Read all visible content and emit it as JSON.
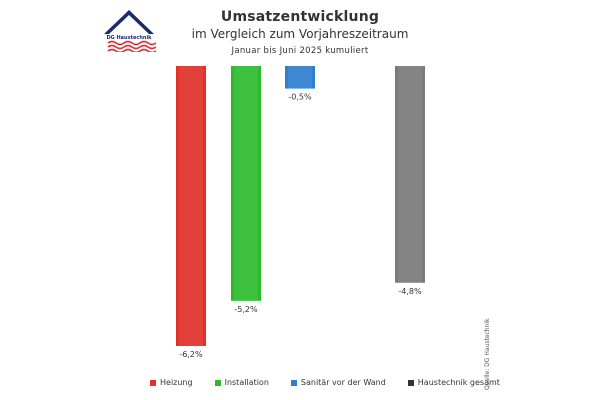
{
  "header": {
    "title": "Umsatzentwicklung",
    "subtitle": "im Vergleich zum Vorjahreszeitraum",
    "period": "Januar bis Juni 2025 kumuliert"
  },
  "logo": {
    "text": "DG Haustechnik"
  },
  "source": "Quelle: DG Haustechnik",
  "colors": {
    "heizung": "#e0312a",
    "installation": "#2dbb2d",
    "sanitaer": "#2f7fd0",
    "gesamt": "#7a7a7a"
  },
  "chart_data": {
    "type": "bar",
    "title": "Umsatzentwicklung",
    "categories": [
      "Heizung",
      "Installation",
      "Sanitär vor der Wand",
      "Haustechnik gesamt"
    ],
    "values": [
      -6.2,
      -5.2,
      -0.5,
      -4.8
    ],
    "data_labels": [
      "-6,2%",
      "-5,2%",
      "-0,5%",
      "-4,8%"
    ],
    "ylim": [
      -6.2,
      0
    ],
    "grid": false,
    "legend": "bottom"
  }
}
